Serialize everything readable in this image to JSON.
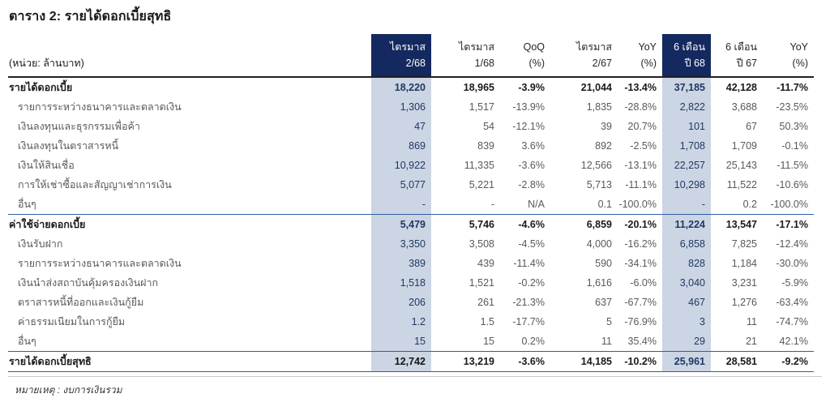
{
  "title": "ตาราง 2: รายได้ดอกเบี้ยสุทธิ",
  "unit_label": "(หน่วย: ล้านบาท)",
  "note": "หมายเหตุ : งบการเงินรวม",
  "colors": {
    "header_bg": "#14295f",
    "header_text": "#ffffff",
    "highlight_col_bg": "#ccd5e3",
    "highlight_text": "#1f3864",
    "item_text": "#595959",
    "strong_text": "#1a1a1a",
    "rule_blue": "#2e5fa3"
  },
  "table": {
    "columns": [
      {
        "line1": "ไตรมาส",
        "line2": "2/68",
        "highlight": true
      },
      {
        "line1": "ไตรมาส",
        "line2": "1/68",
        "highlight": false
      },
      {
        "line1": "QoQ",
        "line2": "(%)",
        "highlight": false
      },
      {
        "line1": "ไตรมาส",
        "line2": "2/67",
        "highlight": false
      },
      {
        "line1": "YoY",
        "line2": "(%)",
        "highlight": false
      },
      {
        "line1": "6 เดือน",
        "line2": "ปี 68",
        "highlight": true
      },
      {
        "line1": "6 เดือน",
        "line2": "ปี 67",
        "highlight": false
      },
      {
        "line1": "YoY",
        "line2": "(%)",
        "highlight": false
      }
    ],
    "rows": [
      {
        "label": "รายได้ดอกเบี้ย",
        "style": "section",
        "values": [
          "18,220",
          "18,965",
          "-3.9%",
          "21,044",
          "-13.4%",
          "37,185",
          "42,128",
          "-11.7%"
        ]
      },
      {
        "label": "รายการระหว่างธนาคารและตลาดเงิน",
        "style": "item",
        "values": [
          "1,306",
          "1,517",
          "-13.9%",
          "1,835",
          "-28.8%",
          "2,822",
          "3,688",
          "-23.5%"
        ]
      },
      {
        "label": "เงินลงทุนและธุรกรรมเพื่อค้า",
        "style": "item",
        "values": [
          "47",
          "54",
          "-12.1%",
          "39",
          "20.7%",
          "101",
          "67",
          "50.3%"
        ]
      },
      {
        "label": "เงินลงทุนในตราสารหนี้",
        "style": "item",
        "values": [
          "869",
          "839",
          "3.6%",
          "892",
          "-2.5%",
          "1,708",
          "1,709",
          "-0.1%"
        ]
      },
      {
        "label": "เงินให้สินเชื่อ",
        "style": "item",
        "values": [
          "10,922",
          "11,335",
          "-3.6%",
          "12,566",
          "-13.1%",
          "22,257",
          "25,143",
          "-11.5%"
        ]
      },
      {
        "label": "การให้เช่าซื้อและสัญญาเช่าการเงิน",
        "style": "item",
        "values": [
          "5,077",
          "5,221",
          "-2.8%",
          "5,713",
          "-11.1%",
          "10,298",
          "11,522",
          "-10.6%"
        ]
      },
      {
        "label": "อื่นๆ",
        "style": "item-last",
        "values": [
          "-",
          "-",
          "N/A",
          "0.1",
          "-100.0%",
          "-",
          "0.2",
          "-100.0%"
        ]
      },
      {
        "label": "ค่าใช้จ่ายดอกเบี้ย",
        "style": "section",
        "values": [
          "5,479",
          "5,746",
          "-4.6%",
          "6,859",
          "-20.1%",
          "11,224",
          "13,547",
          "-17.1%"
        ]
      },
      {
        "label": "เงินรับฝาก",
        "style": "item",
        "values": [
          "3,350",
          "3,508",
          "-4.5%",
          "4,000",
          "-16.2%",
          "6,858",
          "7,825",
          "-12.4%"
        ]
      },
      {
        "label": "รายการระหว่างธนาคารและตลาดเงิน",
        "style": "item",
        "values": [
          "389",
          "439",
          "-11.4%",
          "590",
          "-34.1%",
          "828",
          "1,184",
          "-30.0%"
        ]
      },
      {
        "label": "เงินนำส่งสถาบันคุ้มครองเงินฝาก",
        "style": "item",
        "values": [
          "1,518",
          "1,521",
          "-0.2%",
          "1,616",
          "-6.0%",
          "3,040",
          "3,231",
          "-5.9%"
        ]
      },
      {
        "label": "ตราสารหนี้ที่ออกและเงินกู้ยืม",
        "style": "item",
        "values": [
          "206",
          "261",
          "-21.3%",
          "637",
          "-67.7%",
          "467",
          "1,276",
          "-63.4%"
        ]
      },
      {
        "label": "ค่าธรรมเนียมในการกู้ยืม",
        "style": "item",
        "values": [
          "1.2",
          "1.5",
          "-17.7%",
          "5",
          "-76.9%",
          "3",
          "11",
          "-74.7%"
        ]
      },
      {
        "label": "อื่นๆ",
        "style": "item-last",
        "values": [
          "15",
          "15",
          "0.2%",
          "11",
          "35.4%",
          "29",
          "21",
          "42.1%"
        ]
      },
      {
        "label": "รายได้ดอกเบี้ยสุทธิ",
        "style": "total",
        "values": [
          "12,742",
          "13,219",
          "-3.6%",
          "14,185",
          "-10.2%",
          "25,961",
          "28,581",
          "-9.2%"
        ]
      }
    ]
  }
}
